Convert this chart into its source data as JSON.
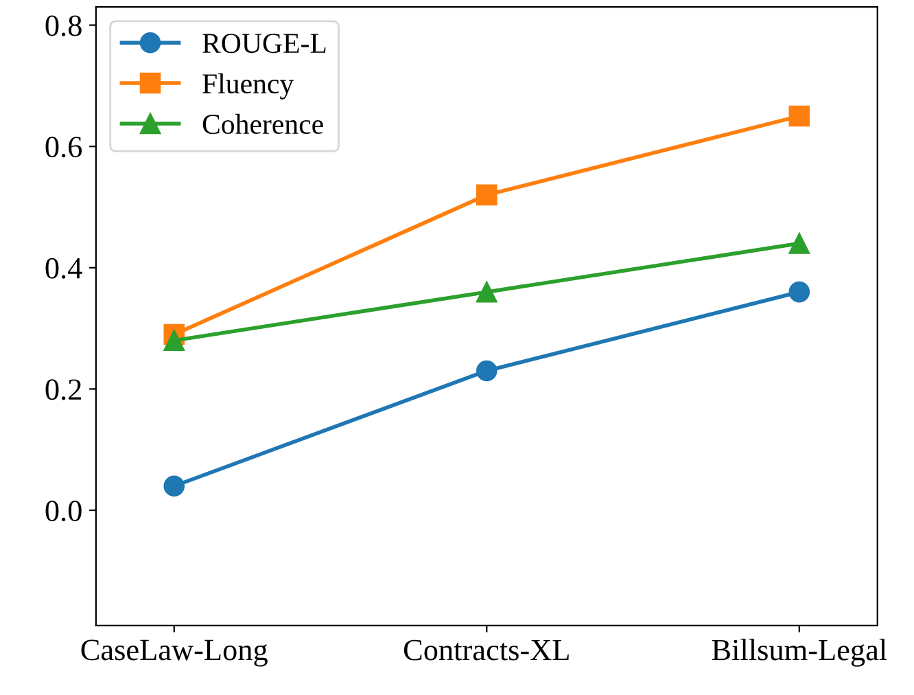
{
  "chart_data": {
    "type": "line",
    "categories": [
      "CaseLaw-Long",
      "Contracts-XL",
      "Billsum-Legal"
    ],
    "series": [
      {
        "name": "ROUGE-L",
        "color": "#1f77b4",
        "marker": "circle",
        "values": [
          0.04,
          0.23,
          0.36
        ]
      },
      {
        "name": "Fluency",
        "color": "#ff7f0e",
        "marker": "square",
        "values": [
          0.29,
          0.52,
          0.65
        ]
      },
      {
        "name": "Coherence",
        "color": "#2ca02c",
        "marker": "triangle",
        "values": [
          0.28,
          0.36,
          0.44
        ]
      }
    ],
    "ylim": [
      -0.19,
      0.83
    ],
    "yticks": [
      {
        "value": 0.0,
        "label": "0.0"
      },
      0.2,
      0.4,
      0.6,
      0.8
    ],
    "legend": "top left",
    "grid": false,
    "line_style": "solid"
  }
}
